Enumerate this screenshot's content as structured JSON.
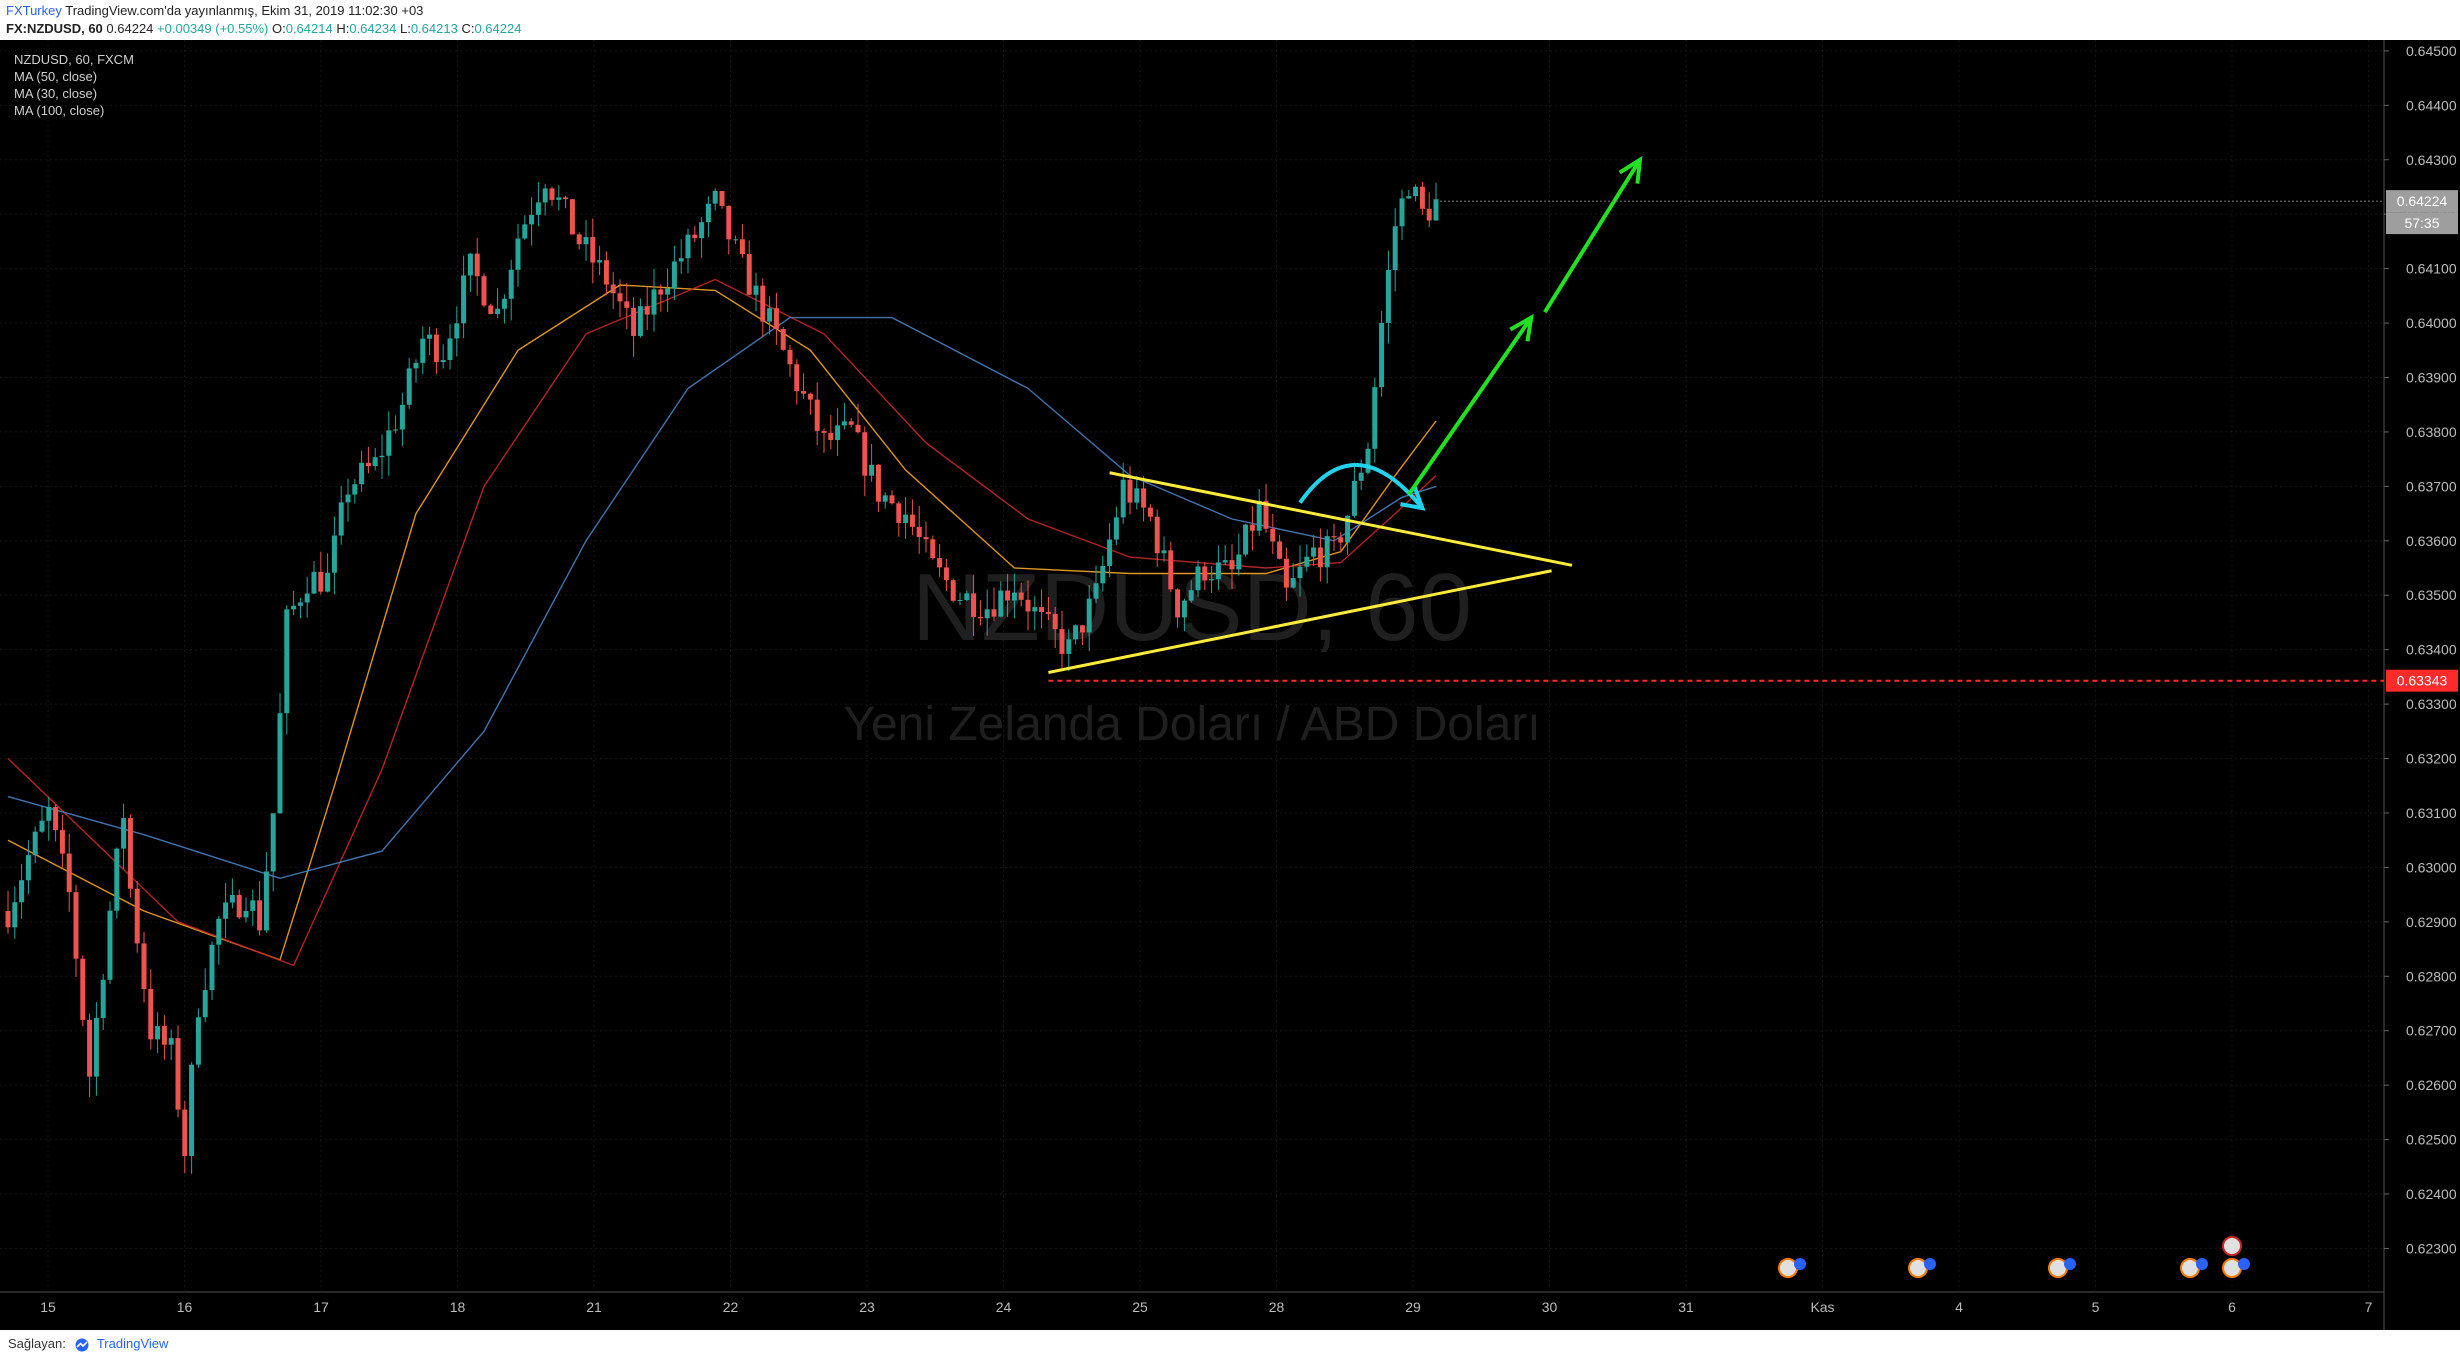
{
  "header": {
    "user": "FXTurkey",
    "published": "TradingView.com'da yayınlanmış, Ekim 31, 2019 11:02:30 +03",
    "symbol": "FX:NZDUSD, 60",
    "last": "0.64224",
    "change": "+0.00349 (+0.55%)",
    "o_label": "O:",
    "o_value": "0.64214",
    "h_label": "H:",
    "h_value": "0.64234",
    "l_label": "L:",
    "l_value": "0.64213",
    "c_label": "C:",
    "c_value": "0.64224"
  },
  "footer": {
    "provided_by": "Sağlayan:",
    "brand": "TradingView"
  },
  "chart_data": {
    "type": "candlestick",
    "symbol_info": "NZDUSD, 60, FXCM",
    "watermark_symbol": "NZDUSD, 60",
    "watermark_desc": "Yeni Zelanda Doları / ABD Doları",
    "indicators": [
      "MA (50, close)",
      "MA (30, close)",
      "MA (100, close)"
    ],
    "y_ticks": [
      "0.64500",
      "0.64400",
      "0.64300",
      "0.64200",
      "0.64100",
      "0.64000",
      "0.63900",
      "0.63800",
      "0.63700",
      "0.63600",
      "0.63500",
      "0.63400",
      "0.63300",
      "0.63200",
      "0.63100",
      "0.63000",
      "0.62900",
      "0.62800",
      "0.62700",
      "0.62600",
      "0.62500",
      "0.62400",
      "0.62300"
    ],
    "ylim": [
      0.6222,
      0.6452
    ],
    "x_ticks": [
      "15",
      "16",
      "17",
      "18",
      "21",
      "22",
      "23",
      "24",
      "25",
      "28",
      "29",
      "30",
      "31",
      "Kas",
      "4",
      "5",
      "6",
      "7"
    ],
    "last_price_label": "0.64224",
    "countdown_label": "57:35",
    "support_price": 0.63343,
    "support_label": "0.63343",
    "price_path": [
      [
        0,
        0.6292
      ],
      [
        3,
        0.6302
      ],
      [
        6,
        0.631
      ],
      [
        9,
        0.6295
      ],
      [
        12,
        0.6262
      ],
      [
        15,
        0.6292
      ],
      [
        17,
        0.631
      ],
      [
        18,
        0.6296
      ],
      [
        21,
        0.627
      ],
      [
        24,
        0.6266
      ],
      [
        26,
        0.6248
      ],
      [
        28,
        0.6275
      ],
      [
        31,
        0.629
      ],
      [
        35,
        0.6295
      ],
      [
        37,
        0.629
      ],
      [
        39,
        0.631
      ],
      [
        41,
        0.6345
      ],
      [
        44,
        0.6353
      ],
      [
        47,
        0.6353
      ],
      [
        50,
        0.637
      ],
      [
        54,
        0.6374
      ],
      [
        58,
        0.6385
      ],
      [
        61,
        0.6397
      ],
      [
        64,
        0.6395
      ],
      [
        68,
        0.641
      ],
      [
        72,
        0.6402
      ],
      [
        75,
        0.6416
      ],
      [
        79,
        0.6427
      ],
      [
        84,
        0.6415
      ],
      [
        88,
        0.6408
      ],
      [
        92,
        0.6398
      ],
      [
        96,
        0.6407
      ],
      [
        100,
        0.6414
      ],
      [
        104,
        0.6422
      ],
      [
        108,
        0.641
      ],
      [
        112,
        0.64
      ],
      [
        116,
        0.6389
      ],
      [
        120,
        0.6378
      ],
      [
        124,
        0.638
      ],
      [
        128,
        0.6369
      ],
      [
        132,
        0.6365
      ],
      [
        136,
        0.6355
      ],
      [
        140,
        0.635
      ],
      [
        144,
        0.6348
      ],
      [
        148,
        0.6352
      ],
      [
        152,
        0.6345
      ],
      [
        156,
        0.634
      ],
      [
        158,
        0.6345
      ],
      [
        160,
        0.635
      ],
      [
        164,
        0.637
      ],
      [
        168,
        0.6364
      ],
      [
        172,
        0.6348
      ],
      [
        176,
        0.6355
      ],
      [
        180,
        0.6354
      ],
      [
        184,
        0.6366
      ],
      [
        188,
        0.635
      ],
      [
        192,
        0.6358
      ],
      [
        195,
        0.6358
      ],
      [
        197,
        0.6365
      ],
      [
        200,
        0.6378
      ],
      [
        202,
        0.64
      ],
      [
        204,
        0.6418
      ],
      [
        206,
        0.6426
      ],
      [
        208,
        0.642
      ],
      [
        210,
        0.6422
      ]
    ],
    "ma_series": [
      {
        "name": "MA (30, close)",
        "color": "#f5a623",
        "points": [
          [
            0,
            0.6305
          ],
          [
            20,
            0.6292
          ],
          [
            40,
            0.6283
          ],
          [
            48,
            0.6315
          ],
          [
            60,
            0.6365
          ],
          [
            75,
            0.6395
          ],
          [
            90,
            0.6407
          ],
          [
            104,
            0.6406
          ],
          [
            118,
            0.6395
          ],
          [
            132,
            0.6373
          ],
          [
            148,
            0.6355
          ],
          [
            165,
            0.6354
          ],
          [
            185,
            0.6354
          ],
          [
            196,
            0.6358
          ],
          [
            204,
            0.6372
          ],
          [
            210,
            0.6382
          ]
        ]
      },
      {
        "name": "MA (50, close)",
        "color": "#c62828",
        "points": [
          [
            0,
            0.632
          ],
          [
            25,
            0.629
          ],
          [
            42,
            0.6282
          ],
          [
            55,
            0.6318
          ],
          [
            70,
            0.637
          ],
          [
            85,
            0.6398
          ],
          [
            104,
            0.6408
          ],
          [
            120,
            0.6398
          ],
          [
            135,
            0.6378
          ],
          [
            150,
            0.6364
          ],
          [
            165,
            0.6357
          ],
          [
            185,
            0.6355
          ],
          [
            196,
            0.6356
          ],
          [
            204,
            0.6365
          ],
          [
            210,
            0.6372
          ]
        ]
      },
      {
        "name": "MA (100, close)",
        "color": "#4a7fc0",
        "points": [
          [
            0,
            0.6313
          ],
          [
            20,
            0.6306
          ],
          [
            40,
            0.6298
          ],
          [
            55,
            0.6303
          ],
          [
            70,
            0.6325
          ],
          [
            85,
            0.636
          ],
          [
            100,
            0.6388
          ],
          [
            115,
            0.6401
          ],
          [
            130,
            0.6401
          ],
          [
            150,
            0.6388
          ],
          [
            165,
            0.6372
          ],
          [
            180,
            0.6364
          ],
          [
            195,
            0.636
          ],
          [
            205,
            0.6368
          ],
          [
            210,
            0.637
          ]
        ]
      }
    ],
    "drawings": {
      "triangle_upper": [
        [
          162,
          0.63725
        ],
        [
          230,
          0.63555
        ]
      ],
      "triangle_lower": [
        [
          153,
          0.63358
        ],
        [
          227,
          0.63545
        ]
      ],
      "support_start": 153,
      "cyan_arc": [
        [
          190,
          0.6367
        ],
        [
          198,
          0.6374
        ],
        [
          208,
          0.6366
        ]
      ],
      "green_arrow1": [
        [
          206,
          0.63685
        ],
        [
          224,
          0.6401
        ]
      ],
      "green_arrow2": [
        [
          226,
          0.6402
        ],
        [
          240,
          0.643
        ]
      ]
    }
  }
}
